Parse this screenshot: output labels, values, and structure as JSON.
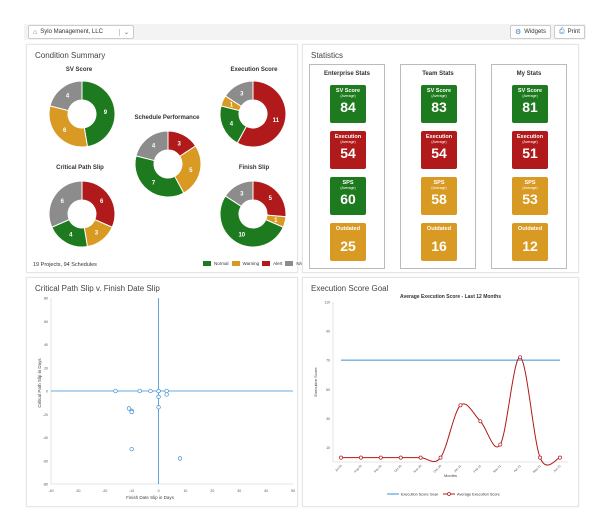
{
  "topbar": {
    "org_name": "Sylo Management, LLC",
    "widgets_label": "Widgets",
    "print_label": "Print"
  },
  "condition_summary": {
    "title": "Condition Summary",
    "pies": [
      {
        "id": "sv",
        "title": "SV Score",
        "slices": [
          {
            "status": "Normal",
            "value": 9
          },
          {
            "status": "Warning",
            "value": 6
          },
          {
            "status": "N/A",
            "value": 4
          }
        ]
      },
      {
        "id": "exec",
        "title": "Execution Score",
        "slices": [
          {
            "status": "Alert",
            "value": 11
          },
          {
            "status": "Normal",
            "value": 4
          },
          {
            "status": "Warning",
            "value": 1
          },
          {
            "status": "N/A",
            "value": 3
          }
        ]
      },
      {
        "id": "sched",
        "title": "Schedule Performance",
        "slices": [
          {
            "status": "Alert",
            "value": 3
          },
          {
            "status": "Warning",
            "value": 5
          },
          {
            "status": "Normal",
            "value": 7
          },
          {
            "status": "N/A",
            "value": 4
          }
        ]
      },
      {
        "id": "cps",
        "title": "Critical Path Slip",
        "slices": [
          {
            "status": "Alert",
            "value": 6
          },
          {
            "status": "Warning",
            "value": 3
          },
          {
            "status": "Normal",
            "value": 4
          },
          {
            "status": "N/A",
            "value": 6
          }
        ]
      },
      {
        "id": "fs",
        "title": "Finish Slip",
        "slices": [
          {
            "status": "Alert",
            "value": 5
          },
          {
            "status": "Warning",
            "value": 1
          },
          {
            "status": "Normal",
            "value": 10
          },
          {
            "status": "N/A",
            "value": 3
          }
        ]
      }
    ],
    "footer": "19 Projects, 94 Schedules",
    "legend": [
      {
        "label": "Normal",
        "color": "#1e7a1e"
      },
      {
        "label": "Warning",
        "color": "#d99a23"
      },
      {
        "label": "Alert",
        "color": "#b01a1a"
      },
      {
        "label": "N/A",
        "color": "#8c8c8c"
      }
    ]
  },
  "statistics": {
    "title": "Statistics",
    "columns": [
      {
        "header": "Enterprise Stats",
        "sv": "84",
        "exec": "54",
        "sps": "60",
        "outdated": "25"
      },
      {
        "header": "Team Stats",
        "sv": "83",
        "exec": "54",
        "sps": "58",
        "outdated": "16"
      },
      {
        "header": "My Stats",
        "sv": "81",
        "exec": "51",
        "sps": "53",
        "outdated": "12"
      }
    ],
    "labels": {
      "sv": "SV Score",
      "exec": "Execution",
      "sps": "SPS",
      "sub": "(Average)",
      "outdated": "Outdated"
    }
  },
  "slip_chart": {
    "title": "Critical Path Slip v. Finish Date Slip",
    "chart_data": {
      "type": "scatter",
      "xlabel": "Finish Date Slip in Days",
      "ylabel": "Critical Path Slip in Days",
      "xlim": [
        -40,
        50
      ],
      "ylim": [
        -80,
        80
      ],
      "xticks": [
        -40,
        -30,
        -20,
        -10,
        0,
        10,
        20,
        30,
        40,
        50
      ],
      "yticks": [
        80,
        60,
        40,
        20,
        0,
        -20,
        -40,
        -60,
        -80
      ],
      "x": [
        -16,
        -7,
        -3,
        0,
        0,
        0,
        3,
        3,
        0,
        -11,
        -10,
        -10,
        -10,
        8
      ],
      "y": [
        0,
        0,
        0,
        0,
        -5,
        -14,
        0,
        -3,
        0,
        -15,
        -17,
        -18,
        -50,
        -58
      ]
    }
  },
  "exec_goal": {
    "title": "Execution Score Goal",
    "chart_data": {
      "type": "line",
      "title": "Average Execution Score - Last 12 Months",
      "xlabel": "Months",
      "ylabel": "Execution Score",
      "ylim": [
        0,
        110
      ],
      "yticks": [
        110,
        90,
        70,
        50,
        30,
        10
      ],
      "categories": [
        "Jul-20",
        "Aug-20",
        "Sep-20",
        "Oct-20",
        "Nov-20",
        "Dec-20",
        "Jan-21",
        "Feb-21",
        "Mar-21",
        "Apr-21",
        "May-21",
        "Jun-21"
      ],
      "series": [
        {
          "name": "Execution Score Goal",
          "color": "#3b8fd6",
          "values": [
            70,
            70,
            70,
            70,
            70,
            70,
            70,
            70,
            70,
            70,
            70,
            70
          ]
        },
        {
          "name": "Average Execution Score",
          "color": "#b01a1a",
          "values": [
            3,
            3,
            3,
            3,
            3,
            3,
            39,
            28,
            12,
            72,
            3,
            3
          ]
        }
      ]
    }
  },
  "colors": {
    "Normal": "#1e7a1e",
    "Warning": "#d99a23",
    "Alert": "#b01a1a",
    "N/A": "#8c8c8c"
  }
}
